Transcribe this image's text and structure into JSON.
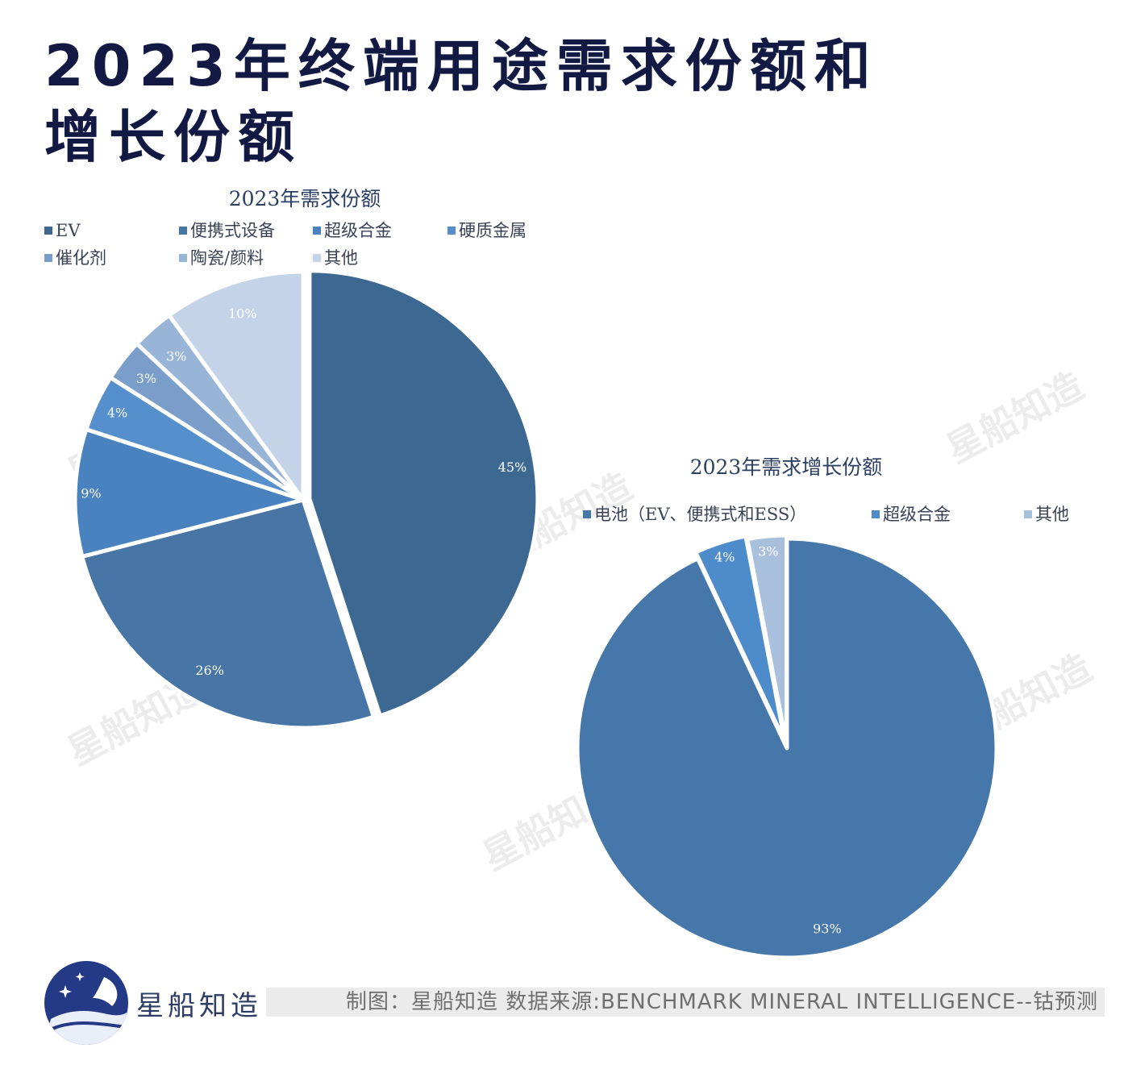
{
  "page_title_lines": [
    "2023年终端用途需求份额和",
    "增长份额"
  ],
  "watermark_text": "星船知造",
  "chart_data": [
    {
      "type": "pie",
      "title": "2023年需求份额",
      "categories": [
        "EV",
        "便携式设备",
        "超级合金",
        "硬质金属",
        "催化剂",
        "陶瓷/颜料",
        "其他"
      ],
      "values": [
        45,
        26,
        9,
        4,
        3,
        3,
        10
      ],
      "labels": [
        "45%",
        "26%",
        "9%",
        "4%",
        "3%",
        "3%",
        "10%"
      ],
      "colors": [
        "#3c6892",
        "#4675a6",
        "#4a82bf",
        "#5690cc",
        "#7a9dca",
        "#98b5d8",
        "#c5d3e8"
      ],
      "legend": "top"
    },
    {
      "type": "pie",
      "title": "2023年需求增长份额",
      "categories": [
        "电池（EV、便携式和ESS）",
        "超级合金",
        "其他"
      ],
      "values": [
        93,
        4,
        3
      ],
      "labels": [
        "93%",
        "4%",
        "3%"
      ],
      "colors": [
        "#4577aa",
        "#4e8bcb",
        "#a9c0dc"
      ],
      "legend": "top"
    }
  ],
  "footer": {
    "brand": "星船知造",
    "source": "制图：星船知造 数据来源:BENCHMARK MINERAL INTELLIGENCE--钴预测"
  }
}
